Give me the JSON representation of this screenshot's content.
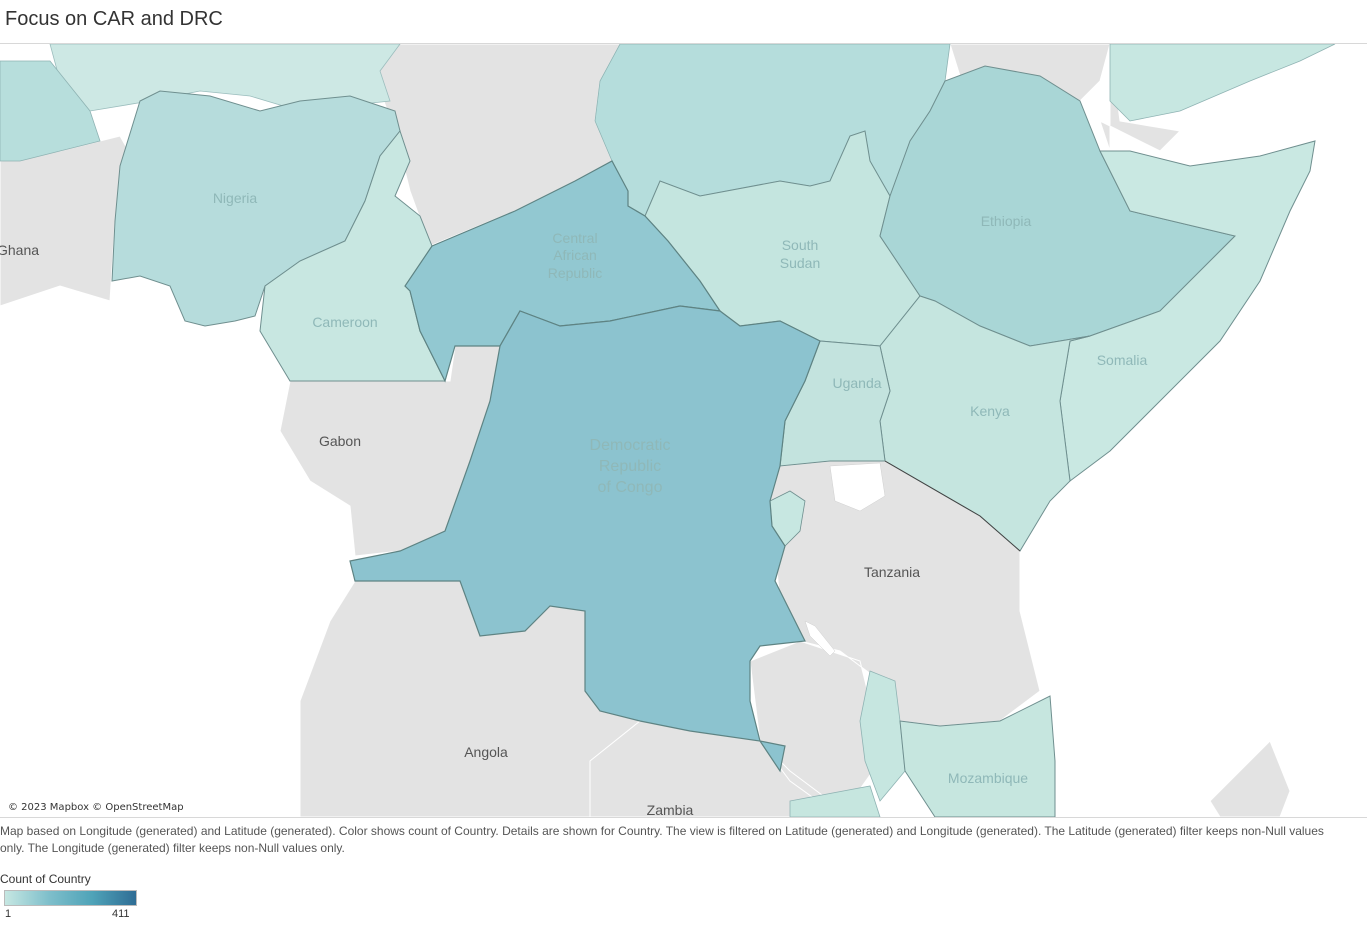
{
  "title": "Focus on CAR and DRC",
  "attribution": "© 2023 Mapbox © OpenStreetMap",
  "caption": "Map based on Longitude (generated) and Latitude (generated).  Color shows count of Country.  Details are shown for Country. The view is filtered on Latitude (generated) and Longitude (generated). The Latitude (generated) filter keeps non-Null values only. The Longitude (generated) filter keeps non-Null values only.",
  "legend": {
    "title": "Count of Country",
    "min": "1",
    "max": "411",
    "colors": [
      "#c6e7e2",
      "#2f6d95"
    ]
  },
  "labels": {
    "nigeria": "Nigeria",
    "ghana": "Ghana",
    "car_1": "Central",
    "car_2": "African",
    "car_3": "Republic",
    "south_sudan_1": "South",
    "south_sudan_2": "Sudan",
    "ethiopia": "Ethiopia",
    "cameroon": "Cameroon",
    "somalia": "Somalia",
    "uganda": "Uganda",
    "kenya": "Kenya",
    "gabon": "Gabon",
    "drc_1": "Democratic",
    "drc_2": "Republic",
    "drc_3": "of Congo",
    "tanzania": "Tanzania",
    "angola": "Angola",
    "mozambique": "Mozambique",
    "zambia": "Zambia"
  }
}
